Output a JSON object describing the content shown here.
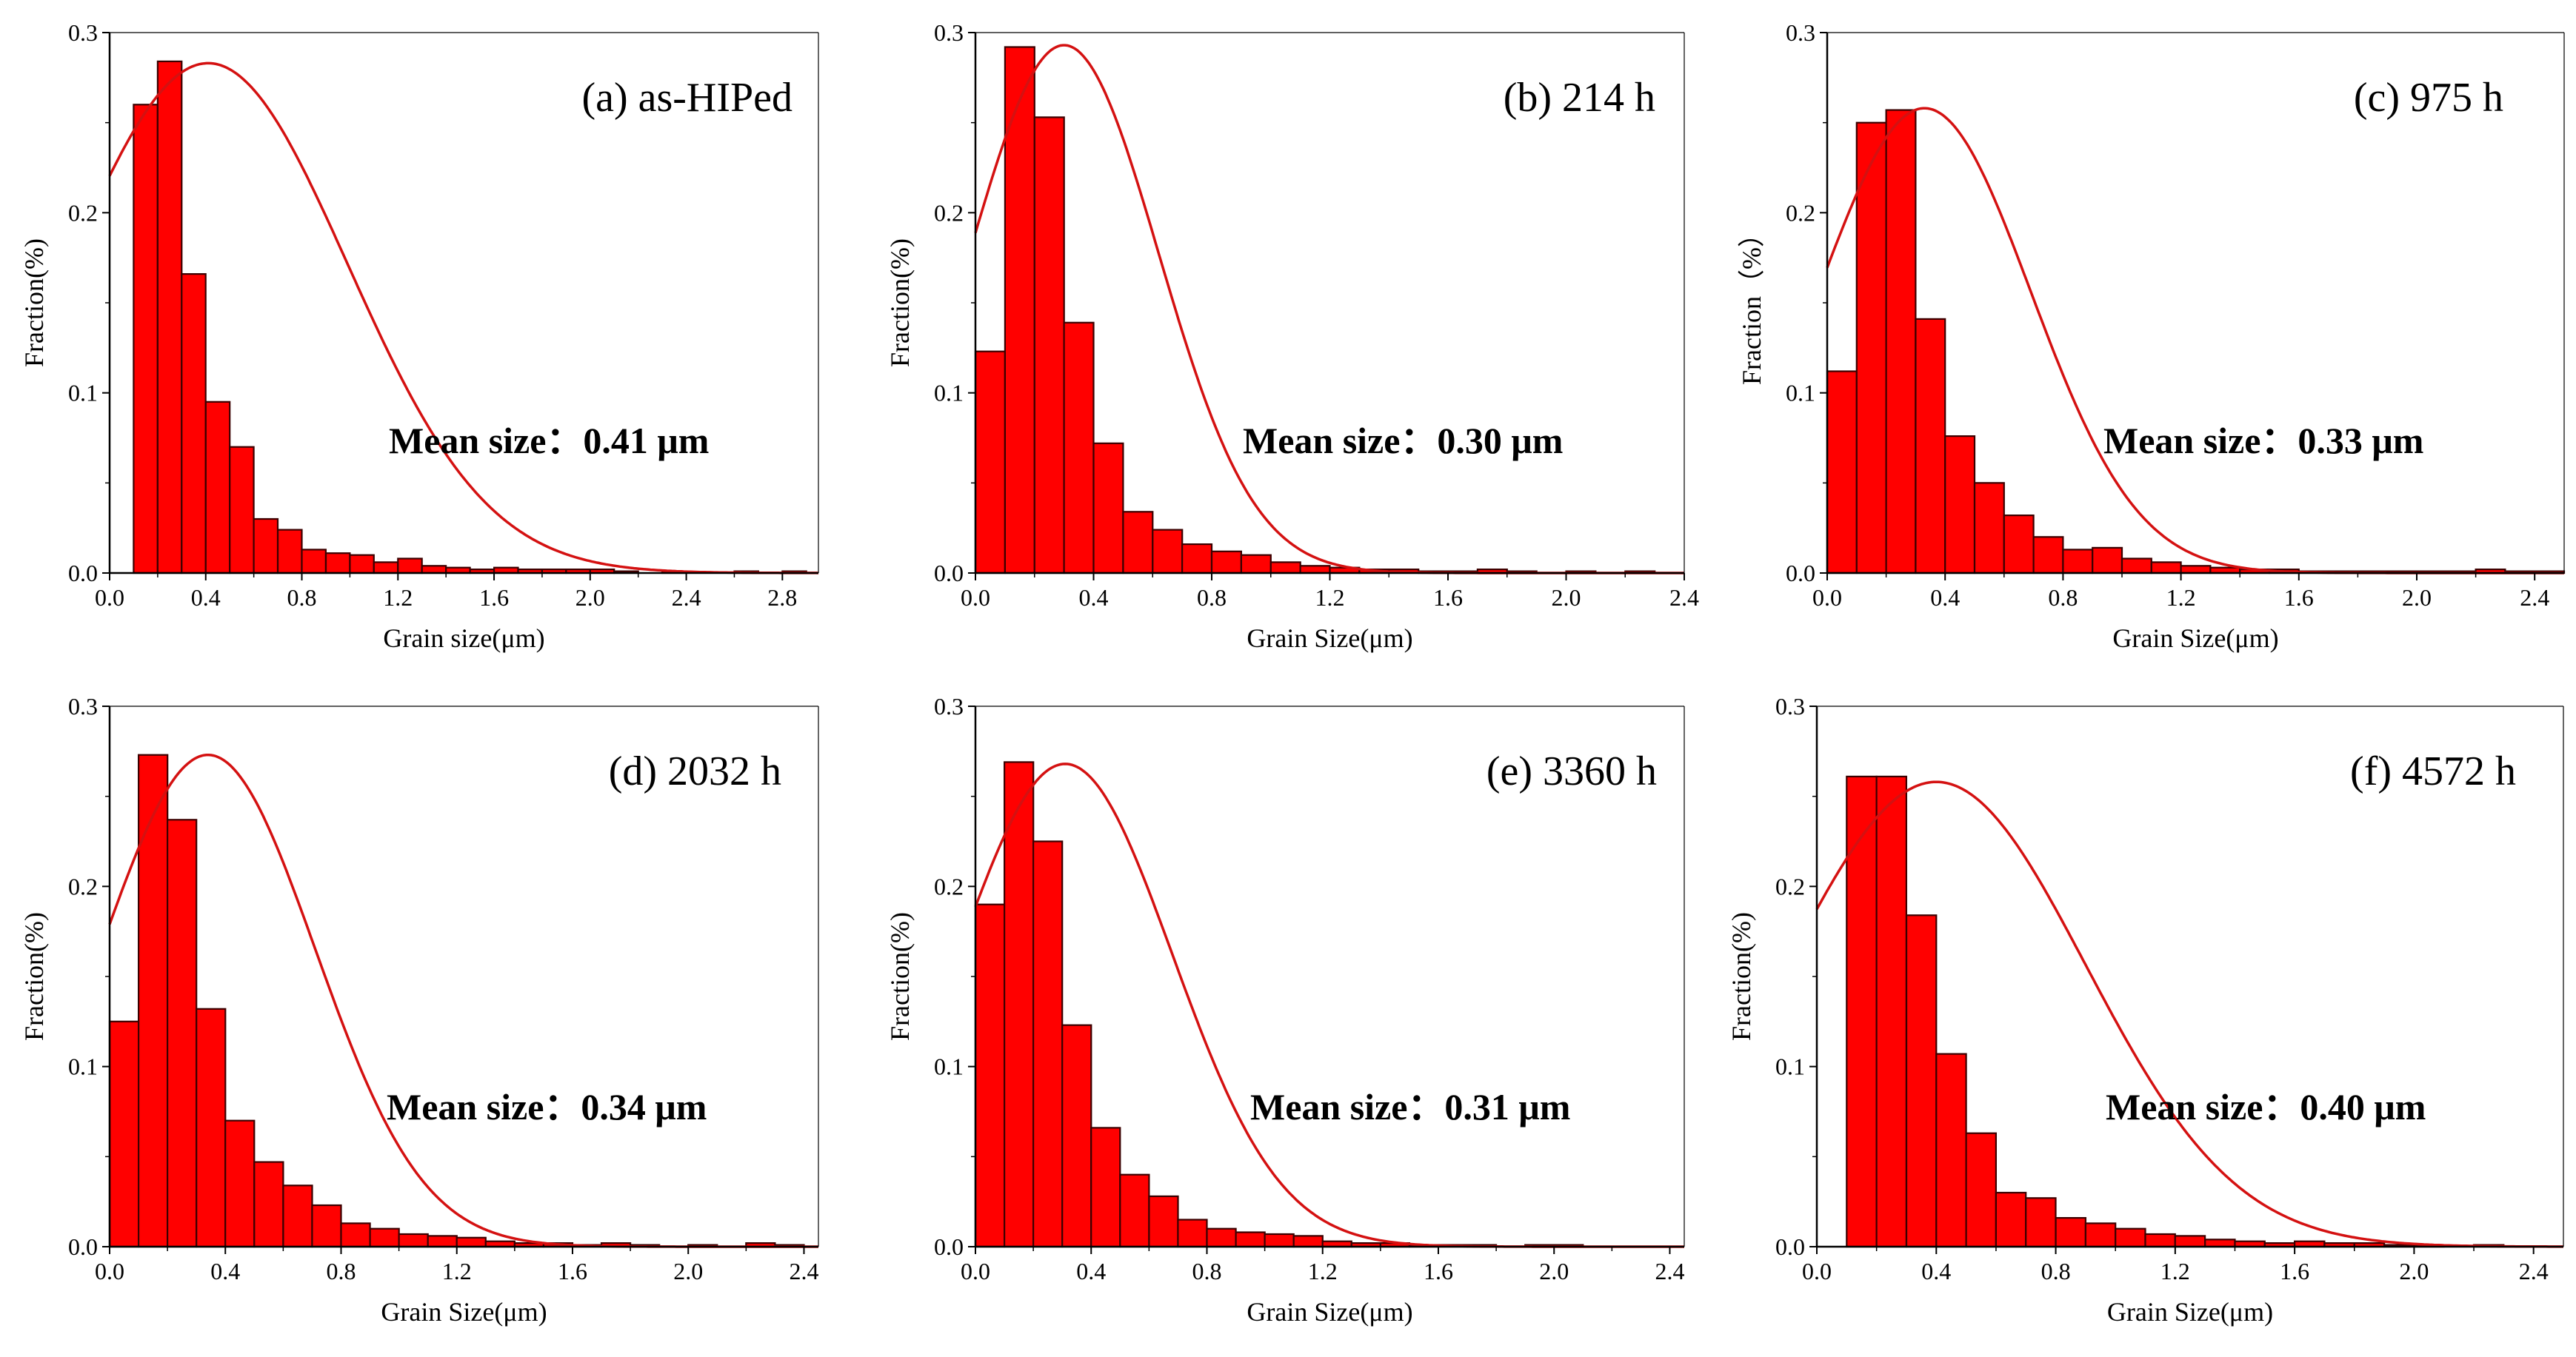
{
  "chart_data": [
    {
      "type": "bar",
      "title": "(a) as-HIPed",
      "annotation": "Mean size：0.41 μm",
      "xlabel": "Grain size(μm)",
      "ylabel": "Fraction(%)",
      "xlim": [
        0,
        2.95
      ],
      "ylim": [
        0,
        0.3
      ],
      "xticks": [
        "0.0",
        "0.4",
        "0.8",
        "1.2",
        "1.6",
        "2.0",
        "2.4",
        "2.8"
      ],
      "yticks": [
        "0.0",
        "0.1",
        "0.2",
        "0.3"
      ],
      "bin_width": 0.1,
      "bin_starts": [
        0.1,
        0.2,
        0.3,
        0.4,
        0.5,
        0.6,
        0.7,
        0.8,
        0.9,
        1.0,
        1.1,
        1.2,
        1.3,
        1.4,
        1.5,
        1.6,
        1.7,
        1.8,
        1.9,
        2.0,
        2.1,
        2.2,
        2.3,
        2.4,
        2.5,
        2.6,
        2.7,
        2.8
      ],
      "values": [
        0.26,
        0.284,
        0.166,
        0.095,
        0.07,
        0.03,
        0.024,
        0.013,
        0.011,
        0.01,
        0.006,
        0.008,
        0.004,
        0.003,
        0.002,
        0.003,
        0.002,
        0.002,
        0.002,
        0.002,
        0.001,
        0,
        0.001,
        0,
        0,
        0.001,
        0,
        0.001
      ],
      "fit": {
        "type": "gaussian",
        "mean": 0.41,
        "sigma": 0.58,
        "peak": 0.283
      }
    },
    {
      "type": "bar",
      "title": "(b) 214 h",
      "annotation": "Mean size：0.30 μm",
      "xlabel": "Grain Size(μm)",
      "ylabel": "Fraction(%)",
      "xlim": [
        0,
        2.4
      ],
      "ylim": [
        0,
        0.3
      ],
      "xticks": [
        "0.0",
        "0.4",
        "0.8",
        "1.2",
        "1.6",
        "2.0",
        "2.4"
      ],
      "yticks": [
        "0.0",
        "0.1",
        "0.2",
        "0.3"
      ],
      "bin_width": 0.1,
      "bin_starts": [
        0.0,
        0.1,
        0.2,
        0.3,
        0.4,
        0.5,
        0.6,
        0.7,
        0.8,
        0.9,
        1.0,
        1.1,
        1.2,
        1.3,
        1.4,
        1.5,
        1.6,
        1.7,
        1.8,
        1.9,
        2.0,
        2.1,
        2.2,
        2.3
      ],
      "values": [
        0.123,
        0.292,
        0.253,
        0.139,
        0.072,
        0.034,
        0.024,
        0.016,
        0.012,
        0.01,
        0.006,
        0.004,
        0.003,
        0.002,
        0.002,
        0.001,
        0.001,
        0.002,
        0.001,
        0,
        0.001,
        0,
        0.001,
        0
      ],
      "fit": {
        "type": "gaussian",
        "mean": 0.3,
        "sigma": 0.32,
        "peak": 0.293
      }
    },
    {
      "type": "bar",
      "title": "(c) 975 h",
      "annotation": "Mean size：0.33 μm",
      "xlabel": "Grain Size(μm)",
      "ylabel": "Fraction（%）",
      "xlim": [
        0,
        2.5
      ],
      "ylim": [
        0,
        0.3
      ],
      "xticks": [
        "0.0",
        "0.4",
        "0.8",
        "1.2",
        "1.6",
        "2.0",
        "2.4"
      ],
      "yticks": [
        "0.0",
        "0.1",
        "0.2",
        "0.3"
      ],
      "bin_width": 0.1,
      "bin_starts": [
        0.0,
        0.1,
        0.2,
        0.3,
        0.4,
        0.5,
        0.6,
        0.7,
        0.8,
        0.9,
        1.0,
        1.1,
        1.2,
        1.3,
        1.4,
        1.5,
        1.6,
        1.7,
        1.8,
        1.9,
        2.0,
        2.1,
        2.2,
        2.3,
        2.4
      ],
      "values": [
        0.112,
        0.25,
        0.257,
        0.141,
        0.076,
        0.05,
        0.032,
        0.02,
        0.013,
        0.014,
        0.008,
        0.006,
        0.004,
        0.003,
        0.002,
        0.002,
        0.001,
        0.001,
        0.001,
        0.001,
        0.001,
        0.001,
        0.002,
        0.001,
        0.001
      ],
      "fit": {
        "type": "gaussian",
        "mean": 0.33,
        "sigma": 0.36,
        "peak": 0.258
      }
    },
    {
      "type": "bar",
      "title": "(d) 2032 h",
      "annotation": "Mean size：0.34 μm",
      "xlabel": "Grain Size(μm)",
      "ylabel": "Fraction(%)",
      "xlim": [
        0,
        2.45
      ],
      "ylim": [
        0,
        0.3
      ],
      "xticks": [
        "0.0",
        "0.4",
        "0.8",
        "1.2",
        "1.6",
        "2.0",
        "2.4"
      ],
      "yticks": [
        "0.0",
        "0.1",
        "0.2",
        "0.3"
      ],
      "bin_width": 0.1,
      "bin_starts": [
        0.0,
        0.1,
        0.2,
        0.3,
        0.4,
        0.5,
        0.6,
        0.7,
        0.8,
        0.9,
        1.0,
        1.1,
        1.2,
        1.3,
        1.4,
        1.5,
        1.6,
        1.7,
        1.8,
        1.9,
        2.0,
        2.1,
        2.2,
        2.3
      ],
      "values": [
        0.125,
        0.273,
        0.237,
        0.132,
        0.07,
        0.047,
        0.034,
        0.023,
        0.013,
        0.01,
        0.007,
        0.006,
        0.005,
        0.003,
        0.002,
        0.002,
        0.001,
        0.002,
        0.001,
        0,
        0.001,
        0,
        0.002,
        0.001
      ],
      "fit": {
        "type": "gaussian",
        "mean": 0.34,
        "sigma": 0.37,
        "peak": 0.273
      }
    },
    {
      "type": "bar",
      "title": "(e) 3360 h",
      "annotation": "Mean size：0.31 μm",
      "xlabel": "Grain Size(μm)",
      "ylabel": "Fraction(%)",
      "xlim": [
        0,
        2.45
      ],
      "ylim": [
        0,
        0.3
      ],
      "xticks": [
        "0.0",
        "0.4",
        "0.8",
        "1.2",
        "1.6",
        "2.0",
        "2.4"
      ],
      "yticks": [
        "0.0",
        "0.1",
        "0.2",
        "0.3"
      ],
      "bin_width": 0.1,
      "bin_starts": [
        0.0,
        0.1,
        0.2,
        0.3,
        0.4,
        0.5,
        0.6,
        0.7,
        0.8,
        0.9,
        1.0,
        1.1,
        1.2,
        1.3,
        1.4,
        1.5,
        1.6,
        1.7,
        1.8,
        1.9,
        2.0
      ],
      "values": [
        0.19,
        0.269,
        0.225,
        0.123,
        0.066,
        0.04,
        0.028,
        0.015,
        0.01,
        0.008,
        0.007,
        0.006,
        0.003,
        0.002,
        0.002,
        0.001,
        0.001,
        0.001,
        0,
        0.001,
        0.001
      ],
      "fit": {
        "type": "gaussian",
        "mean": 0.31,
        "sigma": 0.37,
        "peak": 0.268
      }
    },
    {
      "type": "bar",
      "title": "(f) 4572 h",
      "annotation": "Mean size：0.40 μm",
      "xlabel": "Grain Size(μm)",
      "ylabel": "Fraction(%)",
      "xlim": [
        0,
        2.5
      ],
      "ylim": [
        0,
        0.3
      ],
      "xticks": [
        "0.0",
        "0.4",
        "0.8",
        "1.2",
        "1.6",
        "2.0",
        "2.4"
      ],
      "yticks": [
        "0.0",
        "0.1",
        "0.2",
        "0.3"
      ],
      "bin_width": 0.1,
      "bin_starts": [
        0.1,
        0.2,
        0.3,
        0.4,
        0.5,
        0.6,
        0.7,
        0.8,
        0.9,
        1.0,
        1.1,
        1.2,
        1.3,
        1.4,
        1.5,
        1.6,
        1.7,
        1.8,
        1.9,
        2.0,
        2.1,
        2.2
      ],
      "values": [
        0.261,
        0.261,
        0.184,
        0.107,
        0.063,
        0.03,
        0.027,
        0.016,
        0.013,
        0.01,
        0.007,
        0.006,
        0.004,
        0.003,
        0.002,
        0.003,
        0.002,
        0.002,
        0.001,
        0.001,
        0,
        0.001
      ],
      "fit": {
        "type": "gaussian",
        "mean": 0.4,
        "sigma": 0.5,
        "peak": 0.258
      }
    }
  ],
  "colors": {
    "bar_fill": "#ff0000",
    "bar_edge": "#3a0000",
    "fit_line": "#d41111",
    "axis": "#000000"
  }
}
